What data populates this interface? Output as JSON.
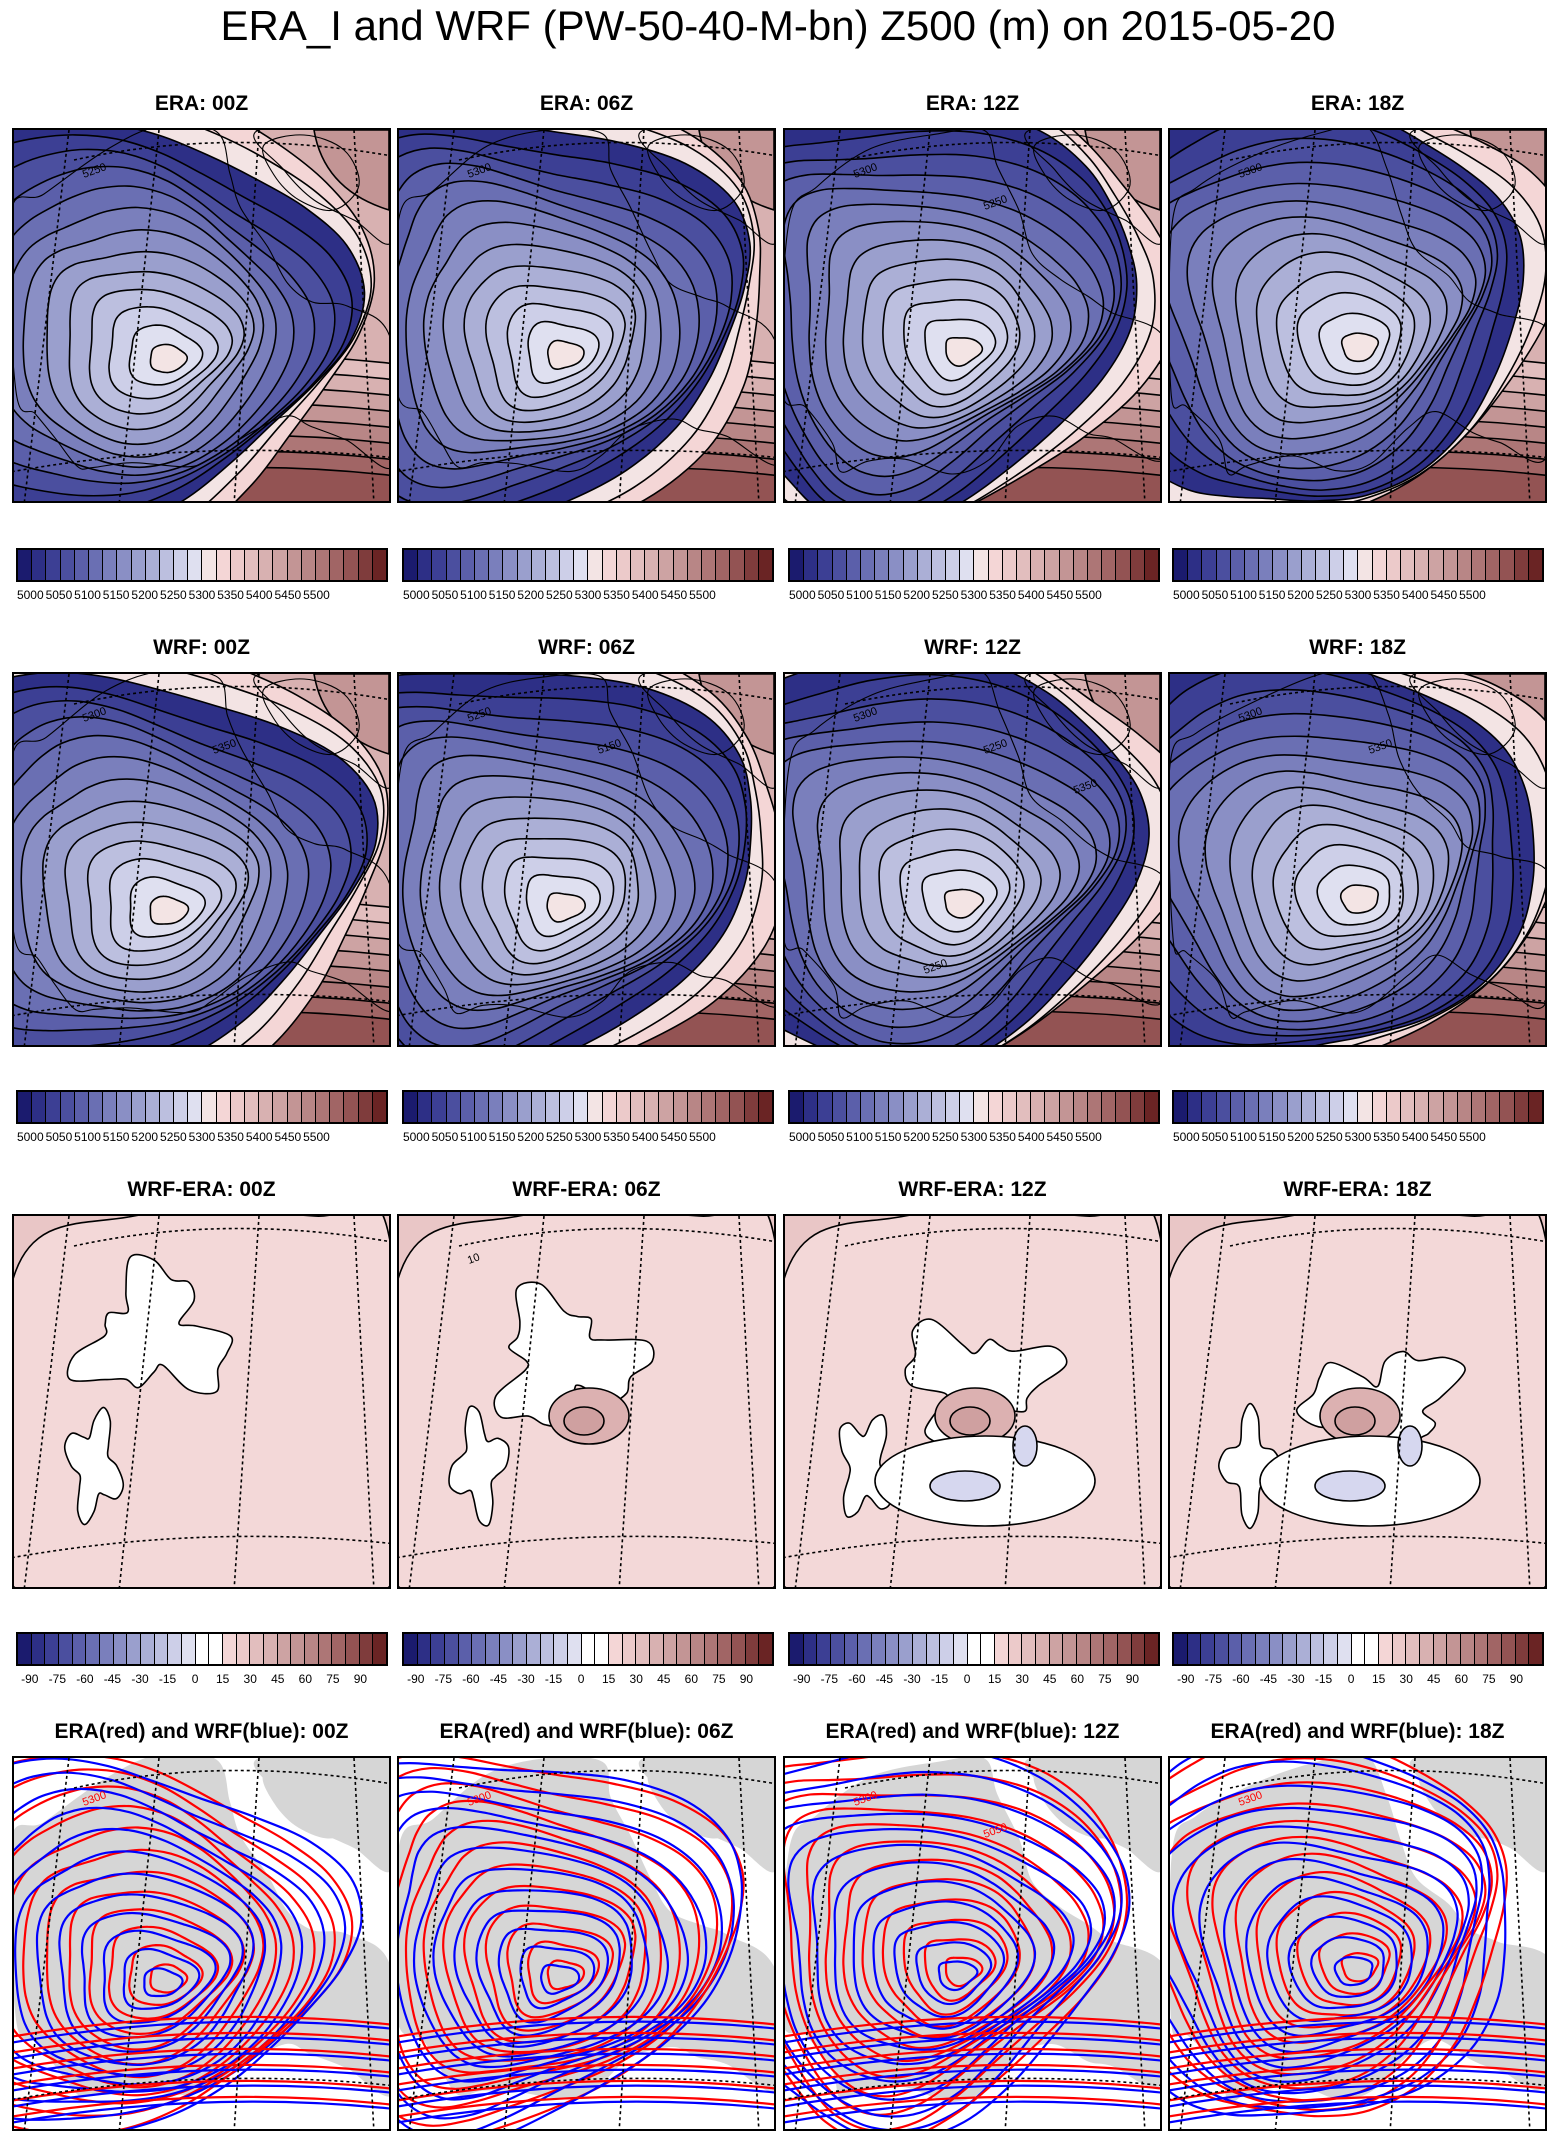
{
  "title": "ERA_I and WRF (PW-50-40-M-bn) Z500 (m) on 2015-05-20",
  "rows": [
    {
      "kind": "era",
      "panels": [
        "ERA: 00Z",
        "ERA: 06Z",
        "ERA: 12Z",
        "ERA: 18Z"
      ],
      "contour_labels": [
        [
          "5250"
        ],
        [
          "5300"
        ],
        [
          "5300",
          "5250"
        ],
        [
          "5300"
        ]
      ]
    },
    {
      "kind": "wrf",
      "panels": [
        "WRF: 00Z",
        "WRF: 06Z",
        "WRF: 12Z",
        "WRF: 18Z"
      ],
      "contour_labels": [
        [
          "5300",
          "5350"
        ],
        [
          "5250",
          "5150"
        ],
        [
          "5300",
          "5250",
          "5350",
          "5250"
        ],
        [
          "5300",
          "5350"
        ]
      ]
    },
    {
      "kind": "diff",
      "panels": [
        "WRF-ERA: 00Z",
        "WRF-ERA: 06Z",
        "WRF-ERA: 12Z",
        "WRF-ERA: 18Z"
      ],
      "contour_labels": [
        [],
        [
          "10"
        ],
        [],
        []
      ]
    },
    {
      "kind": "overlay",
      "panels": [
        "ERA(red) and WRF(blue): 00Z",
        "ERA(red) and WRF(blue): 06Z",
        "ERA(red) and WRF(blue): 12Z",
        "ERA(red) and WRF(blue): 18Z"
      ],
      "contour_labels": [
        [
          "5300"
        ],
        [
          "5300"
        ],
        [
          "5300",
          "5050"
        ],
        [
          "5300"
        ]
      ]
    }
  ],
  "colorbars": {
    "z500": {
      "labels": [
        "5000",
        "5050",
        "5100",
        "5150",
        "5200",
        "5250",
        "5300",
        "5350",
        "5400",
        "5450",
        "5500"
      ],
      "colors": [
        "#1b1b6e",
        "#2d2f86",
        "#3c3f94",
        "#4b4f9f",
        "#5b5faa",
        "#6a6fb3",
        "#7a7fbc",
        "#8a8fc5",
        "#9a9fcd",
        "#abafd6",
        "#bcbfdf",
        "#cdcfe8",
        "#dfe0f0",
        "#f3e4e4",
        "#f4d6d6",
        "#eccaca",
        "#e2bebe",
        "#d8b1b1",
        "#cda3a3",
        "#c39595",
        "#b88686",
        "#ad7676",
        "#a16565",
        "#935353",
        "#7f3c3c",
        "#6a2424"
      ]
    },
    "diff": {
      "labels": [
        "-90",
        "-75",
        "-60",
        "-45",
        "-30",
        "-15",
        "0",
        "15",
        "30",
        "45",
        "60",
        "75",
        "90"
      ],
      "colors": [
        "#1b1b6e",
        "#2d2f86",
        "#3c3f94",
        "#4b4f9f",
        "#5b5faa",
        "#6a6fb3",
        "#7a7fbc",
        "#8a8fc5",
        "#9a9fcd",
        "#abafd6",
        "#bcbfdf",
        "#cdcfe8",
        "#dfe0f0",
        "#ffffff",
        "#ffffff",
        "#f4d6d6",
        "#eccaca",
        "#e2bebe",
        "#d8b1b1",
        "#cda3a3",
        "#c39595",
        "#b88686",
        "#ad7676",
        "#a16565",
        "#935353",
        "#7f3c3c",
        "#6a2424"
      ]
    }
  },
  "colors": {
    "era_line": "#ff0000",
    "wrf_line": "#0000ff",
    "land": "#d6d6d6"
  }
}
